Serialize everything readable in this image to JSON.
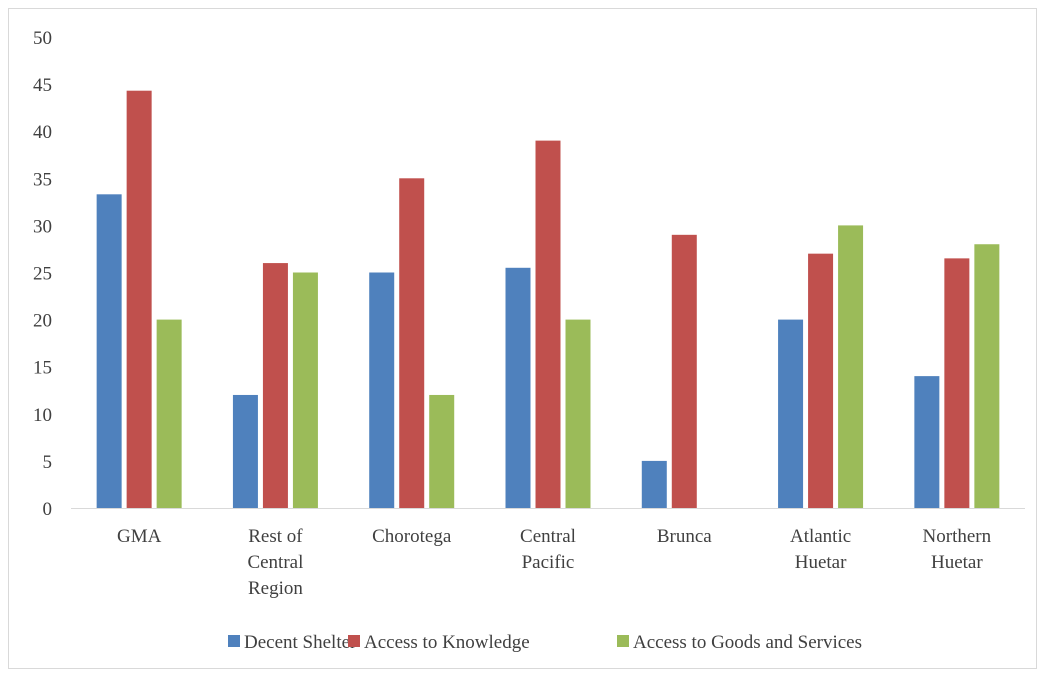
{
  "chart_data": {
    "type": "bar",
    "title": "",
    "xlabel": "",
    "ylabel": "",
    "ylim": [
      0,
      50
    ],
    "yticks": [
      0,
      5,
      10,
      15,
      20,
      25,
      30,
      35,
      40,
      45,
      50
    ],
    "grid": false,
    "legend_position": "bottom",
    "categories": [
      [
        "GMA"
      ],
      [
        "Rest of",
        "Central",
        "Region"
      ],
      [
        "Chorotega"
      ],
      [
        "Central",
        "Pacific"
      ],
      [
        "Brunca"
      ],
      [
        "Atlantic",
        "Huetar"
      ],
      [
        "Northern",
        "Huetar"
      ]
    ],
    "series": [
      {
        "name": "Decent Shelter",
        "color": "#4f81bd",
        "values": [
          33.3,
          12,
          25,
          25.5,
          5,
          20,
          14
        ]
      },
      {
        "name": "Access to Knowledge",
        "color": "#c0504d",
        "values": [
          44.3,
          26,
          35,
          39,
          29,
          27,
          26.5
        ]
      },
      {
        "name": "Access to Goods and Services",
        "color": "#9bbb59",
        "values": [
          20,
          25,
          12,
          20,
          0,
          30,
          28
        ]
      }
    ]
  }
}
